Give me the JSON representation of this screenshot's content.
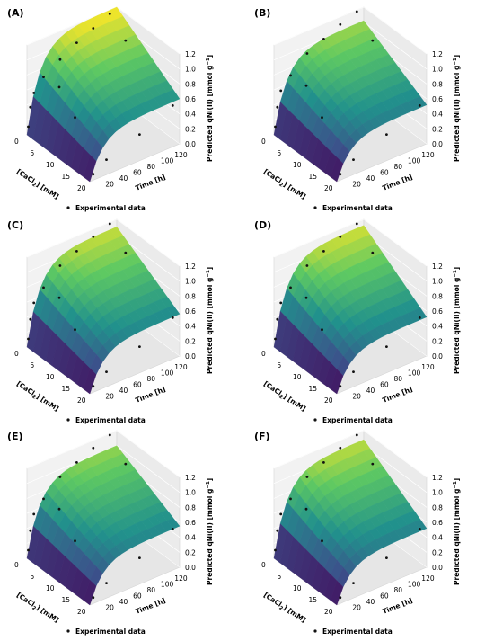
{
  "figure": {
    "legend_label": "Experimental data",
    "zlabel": "Predicted qNi(II) [mmol g",
    "zlabel_sup": "−1",
    "zlabel_end": "]",
    "xlabel_pre": "[CaCl",
    "xlabel_sub": "2",
    "xlabel_post": "] [mM]",
    "ylabel": "Time [h]",
    "x_ticks": [
      "0",
      "5",
      "10",
      "15",
      "20"
    ],
    "y_ticks": [
      "20",
      "40",
      "60",
      "80",
      "100",
      "120"
    ],
    "z_ticks": [
      "0.0",
      "0.2",
      "0.4",
      "0.6",
      "0.8",
      "1.0",
      "1.2"
    ],
    "colormap": [
      "#440154",
      "#3b528b",
      "#21918c",
      "#5ec962",
      "#fde725"
    ]
  },
  "chart_data": [
    {
      "type": "surface3d",
      "panel": "(A)",
      "x_range": [
        0,
        20
      ],
      "y_range": [
        0,
        130
      ],
      "z_range": [
        0,
        1.2
      ],
      "surface_corners": {
        "x0_y0": 0.0,
        "x0_ymax": 1.2,
        "xmax_y0": 0.0,
        "xmax_ymax": 0.6
      },
      "experimental_points": [
        [
          0,
          2,
          0.1
        ],
        [
          0,
          5,
          0.35
        ],
        [
          0,
          10,
          0.52
        ],
        [
          0,
          24,
          0.68
        ],
        [
          0,
          48,
          0.82
        ],
        [
          0,
          72,
          0.95
        ],
        [
          0,
          96,
          1.05
        ],
        [
          0,
          120,
          1.15
        ],
        [
          5,
          24,
          0.7
        ],
        [
          5,
          120,
          0.95
        ],
        [
          10,
          24,
          0.45
        ],
        [
          20,
          5,
          0.08
        ],
        [
          20,
          24,
          0.2
        ],
        [
          20,
          72,
          0.35
        ],
        [
          20,
          120,
          0.55
        ]
      ]
    },
    {
      "type": "surface3d",
      "panel": "(B)",
      "x_range": [
        0,
        20
      ],
      "y_range": [
        0,
        130
      ],
      "z_range": [
        0,
        1.2
      ],
      "surface_corners": {
        "x0_y0": 0.0,
        "x0_ymax": 1.02,
        "xmax_y0": 0.0,
        "xmax_ymax": 0.52
      },
      "experimental_points": [
        [
          0,
          2,
          0.1
        ],
        [
          0,
          5,
          0.35
        ],
        [
          0,
          10,
          0.55
        ],
        [
          0,
          24,
          0.7
        ],
        [
          0,
          48,
          0.9
        ],
        [
          0,
          72,
          1.0
        ],
        [
          0,
          96,
          1.1
        ],
        [
          0,
          120,
          1.18
        ],
        [
          5,
          24,
          0.72
        ],
        [
          5,
          120,
          0.95
        ],
        [
          10,
          24,
          0.45
        ],
        [
          20,
          5,
          0.08
        ],
        [
          20,
          24,
          0.2
        ],
        [
          20,
          72,
          0.35
        ],
        [
          20,
          120,
          0.55
        ]
      ]
    },
    {
      "type": "surface3d",
      "panel": "(C)",
      "x_range": [
        0,
        20
      ],
      "y_range": [
        0,
        130
      ],
      "z_range": [
        0,
        1.2
      ],
      "surface_corners": {
        "x0_y0": 0.0,
        "x0_ymax": 1.1,
        "xmax_y0": 0.0,
        "xmax_ymax": 0.56
      },
      "experimental_points": [
        [
          0,
          2,
          0.1
        ],
        [
          0,
          5,
          0.35
        ],
        [
          0,
          10,
          0.55
        ],
        [
          0,
          24,
          0.7
        ],
        [
          0,
          48,
          0.9
        ],
        [
          0,
          72,
          1.0
        ],
        [
          0,
          96,
          1.1
        ],
        [
          0,
          120,
          1.18
        ],
        [
          5,
          24,
          0.72
        ],
        [
          5,
          120,
          0.95
        ],
        [
          10,
          24,
          0.45
        ],
        [
          20,
          5,
          0.08
        ],
        [
          20,
          24,
          0.2
        ],
        [
          20,
          72,
          0.35
        ],
        [
          20,
          120,
          0.55
        ]
      ]
    },
    {
      "type": "surface3d",
      "panel": "(D)",
      "x_range": [
        0,
        20
      ],
      "y_range": [
        0,
        130
      ],
      "z_range": [
        0,
        1.2
      ],
      "surface_corners": {
        "x0_y0": 0.0,
        "x0_ymax": 1.12,
        "xmax_y0": 0.0,
        "xmax_ymax": 0.52
      },
      "experimental_points": [
        [
          0,
          2,
          0.1
        ],
        [
          0,
          5,
          0.35
        ],
        [
          0,
          10,
          0.55
        ],
        [
          0,
          24,
          0.7
        ],
        [
          0,
          48,
          0.9
        ],
        [
          0,
          72,
          1.0
        ],
        [
          0,
          96,
          1.1
        ],
        [
          0,
          120,
          1.18
        ],
        [
          5,
          24,
          0.72
        ],
        [
          5,
          120,
          0.95
        ],
        [
          10,
          24,
          0.45
        ],
        [
          20,
          5,
          0.08
        ],
        [
          20,
          24,
          0.2
        ],
        [
          20,
          72,
          0.35
        ],
        [
          20,
          120,
          0.55
        ]
      ]
    },
    {
      "type": "surface3d",
      "panel": "(E)",
      "x_range": [
        0,
        20
      ],
      "y_range": [
        0,
        130
      ],
      "z_range": [
        0,
        1.2
      ],
      "surface_corners": {
        "x0_y0": 0.0,
        "x0_ymax": 1.0,
        "xmax_y0": 0.0,
        "xmax_ymax": 0.55
      },
      "experimental_points": [
        [
          0,
          2,
          0.1
        ],
        [
          0,
          5,
          0.35
        ],
        [
          0,
          10,
          0.55
        ],
        [
          0,
          24,
          0.7
        ],
        [
          0,
          48,
          0.9
        ],
        [
          0,
          72,
          1.0
        ],
        [
          0,
          96,
          1.1
        ],
        [
          0,
          120,
          1.18
        ],
        [
          5,
          24,
          0.72
        ],
        [
          5,
          120,
          0.95
        ],
        [
          10,
          24,
          0.45
        ],
        [
          20,
          5,
          0.08
        ],
        [
          20,
          24,
          0.2
        ],
        [
          20,
          72,
          0.35
        ],
        [
          20,
          120,
          0.55
        ]
      ]
    },
    {
      "type": "surface3d",
      "panel": "(F)",
      "x_range": [
        0,
        20
      ],
      "y_range": [
        0,
        130
      ],
      "z_range": [
        0,
        1.2
      ],
      "surface_corners": {
        "x0_y0": 0.0,
        "x0_ymax": 1.08,
        "xmax_y0": 0.0,
        "xmax_ymax": 0.52
      },
      "experimental_points": [
        [
          0,
          2,
          0.1
        ],
        [
          0,
          5,
          0.35
        ],
        [
          0,
          10,
          0.55
        ],
        [
          0,
          24,
          0.7
        ],
        [
          0,
          48,
          0.9
        ],
        [
          0,
          72,
          1.0
        ],
        [
          0,
          96,
          1.1
        ],
        [
          0,
          120,
          1.18
        ],
        [
          5,
          24,
          0.72
        ],
        [
          5,
          120,
          0.95
        ],
        [
          10,
          24,
          0.45
        ],
        [
          20,
          5,
          0.08
        ],
        [
          20,
          24,
          0.2
        ],
        [
          20,
          72,
          0.35
        ],
        [
          20,
          120,
          0.55
        ]
      ]
    }
  ]
}
